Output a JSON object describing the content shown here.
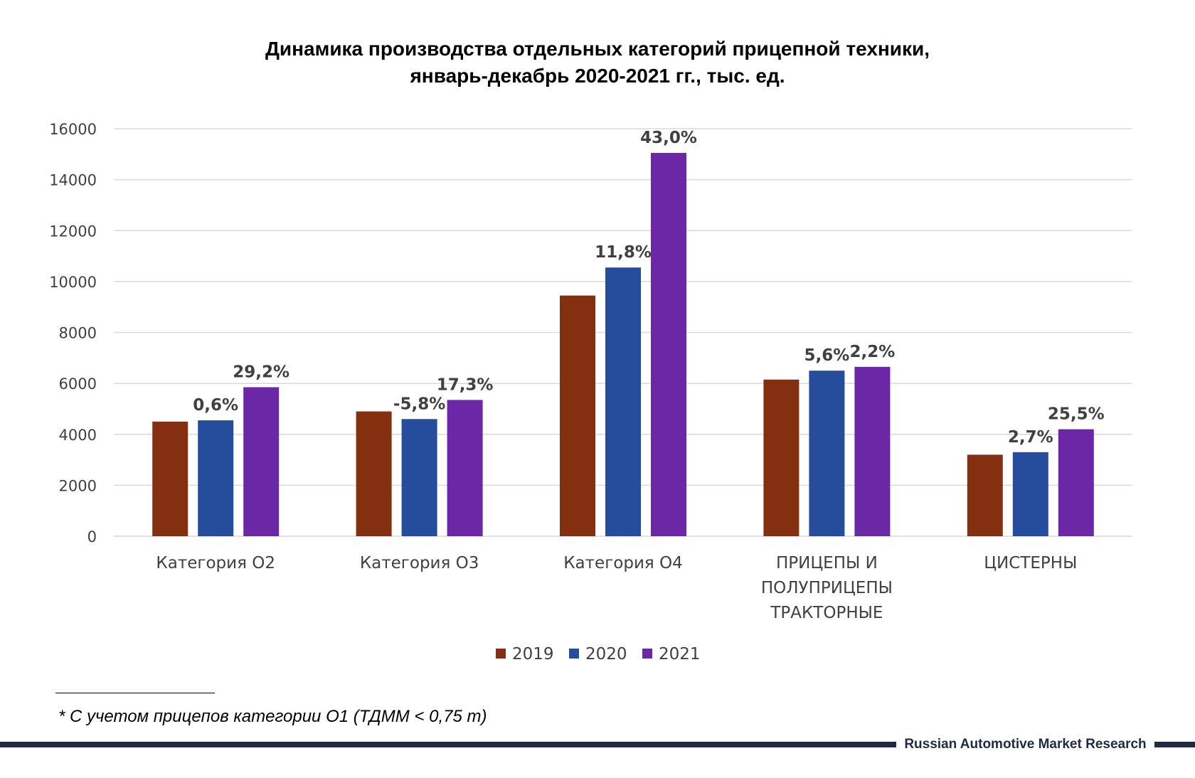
{
  "chart_data": {
    "type": "bar",
    "title_lines": [
      "Динамика производства отдельных категорий прицепной техники,",
      "январь-декабрь 2020-2021 гг., тыс. ед."
    ],
    "categories": [
      [
        "Категория О2"
      ],
      [
        "Категория О3"
      ],
      [
        "Категория О4"
      ],
      [
        "ПРИЦЕПЫ И",
        "ПОЛУПРИЦЕПЫ",
        "ТРАКТОРНЫЕ"
      ],
      [
        "ЦИСТЕРНЫ"
      ]
    ],
    "series": [
      {
        "name": "2019",
        "color": "#843010",
        "values": [
          4500,
          4900,
          9450,
          6150,
          3200
        ],
        "labels": [
          "",
          "",
          "",
          "",
          ""
        ]
      },
      {
        "name": "2020",
        "color": "#254d9c",
        "values": [
          4550,
          4600,
          10550,
          6500,
          3300
        ],
        "labels": [
          "0,6%",
          "-5,8%",
          "11,8%",
          "5,6%",
          "2,7%"
        ]
      },
      {
        "name": "2021",
        "color": "#6b27a6",
        "values": [
          5850,
          5350,
          15050,
          6650,
          4200
        ],
        "labels": [
          "29,2%",
          "17,3%",
          "43,0%",
          "2,2%",
          "25,5%"
        ]
      }
    ],
    "ylim": [
      0,
      16000
    ],
    "yticks": [
      0,
      2000,
      4000,
      6000,
      8000,
      10000,
      12000,
      14000,
      16000
    ],
    "grid": true,
    "legend_position": "bottom"
  },
  "footnote": "* С учетом прицепов категории О1 (ТДММ < 0,75 т)",
  "footer_brand": "Russian Automotive Market Research"
}
